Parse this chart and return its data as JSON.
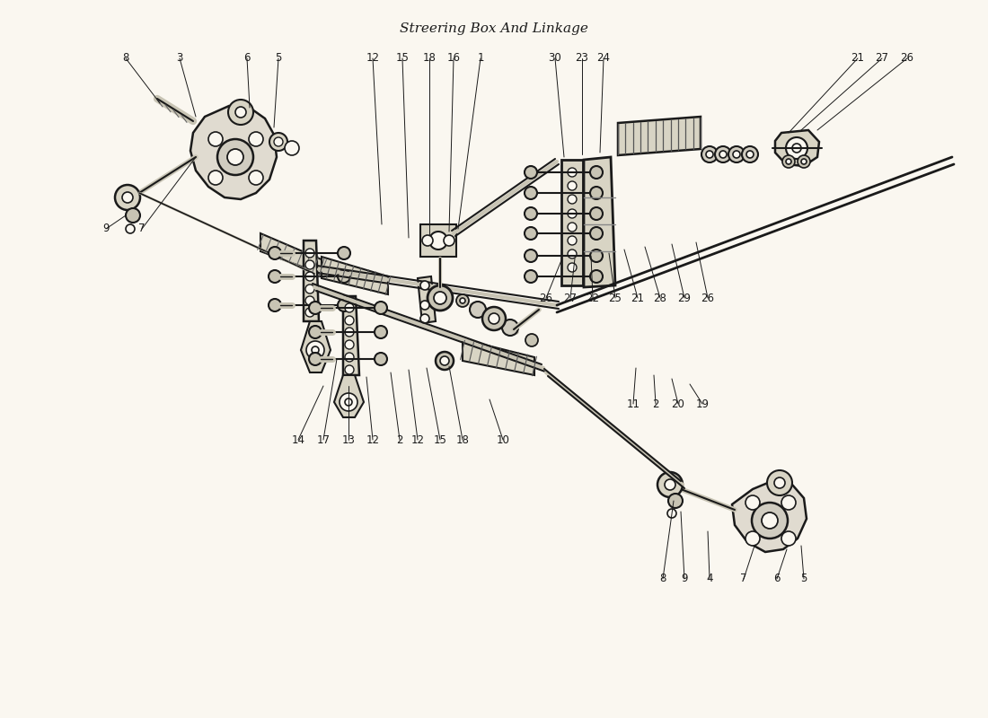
{
  "title": "Streering Box And Linkage",
  "bg_color": "#faf7f0",
  "line_color": "#1a1a1a",
  "figsize": [
    11.0,
    8.0
  ],
  "dpi": 100,
  "lc": "#1a1a1a",
  "fc_part": "#e8e4d8",
  "fc_dark": "#c8c4b4"
}
